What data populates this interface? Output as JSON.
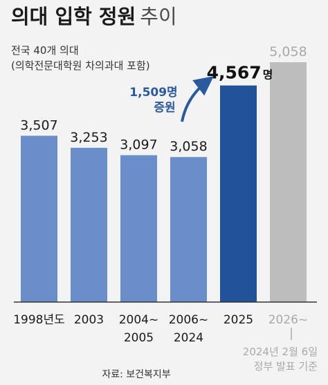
{
  "chart_data": {
    "type": "bar",
    "title": "의대 입학 정원",
    "title_suffix": "추이",
    "subtitle_line1": "전국 40개 의대",
    "subtitle_line2": "(의학전문대학원 차의과대 포함)",
    "categories": [
      {
        "line1": "1998년도",
        "line2": ""
      },
      {
        "line1": "2003",
        "line2": ""
      },
      {
        "line1": "2004~",
        "line2": "2005"
      },
      {
        "line1": "2006~",
        "line2": "2024"
      },
      {
        "line1": "2025",
        "line2": ""
      },
      {
        "line1": "2026~",
        "line2": ""
      }
    ],
    "values": [
      3507,
      3253,
      3097,
      3058,
      4567,
      5058
    ],
    "value_labels": [
      "3,507",
      "3,253",
      "3,097",
      "3,058",
      "4,567",
      "5,058"
    ],
    "unit_label": "명",
    "unit_label_index": 4,
    "highlight_index": 4,
    "future_index": 5,
    "increase_annotation_line1": "1,509명",
    "increase_annotation_line2": "증원",
    "future_note_line1": "2024년 2월 6일",
    "future_note_line2": "정부 발표 기준",
    "source": "자료: 보건복지부",
    "ylim": [
      0,
      5058
    ],
    "colors": {
      "normal": "#6a8ec9",
      "highlight": "#22529a",
      "future": "#bdbdbd",
      "annotation": "#2a5a9e",
      "future_text": "#a9a9a9",
      "axis": "#333333"
    }
  }
}
